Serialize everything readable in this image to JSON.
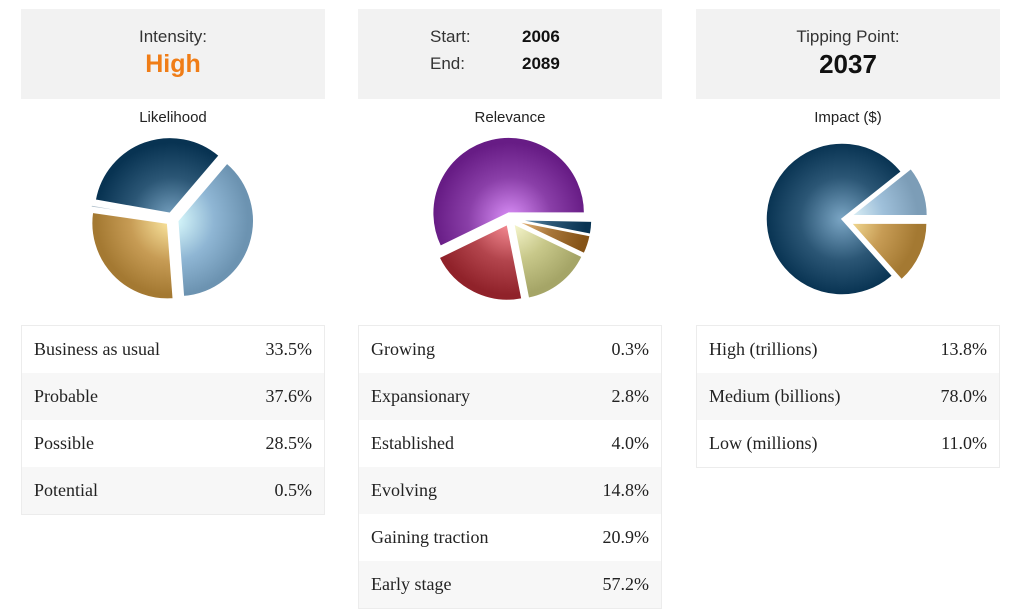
{
  "header": {
    "intensity_label": "Intensity:",
    "intensity_value": "High",
    "start_label": "Start:",
    "start_value": "2006",
    "end_label": "End:",
    "end_value": "2089",
    "tipping_label": "Tipping Point:",
    "tipping_value": "2037"
  },
  "chart_data": [
    {
      "type": "pie",
      "title": "Likelihood",
      "categories": [
        "Business as usual",
        "Probable",
        "Possible",
        "Potential"
      ],
      "values": [
        33.5,
        37.6,
        28.5,
        0.5
      ],
      "value_labels": [
        "33.5%",
        "37.6%",
        "28.5%",
        "0.5%"
      ],
      "colors": [
        "#2b5675",
        "#8fb6d4",
        "#c79c55",
        "#d0e0ec"
      ],
      "exploded": "all"
    },
    {
      "type": "pie",
      "title": "Relevance",
      "categories": [
        "Growing",
        "Expansionary",
        "Established",
        "Evolving",
        "Gaining traction",
        "Early stage"
      ],
      "values": [
        0.3,
        2.8,
        4.0,
        14.8,
        20.9,
        57.2
      ],
      "value_labels": [
        "0.3%",
        "2.8%",
        "4.0%",
        "14.8%",
        "20.9%",
        "57.2%"
      ],
      "colors": [
        "#7a8fa3",
        "#2b5675",
        "#a8763a",
        "#c8c88a",
        "#b3454d",
        "#8a3fa8"
      ],
      "exploded": "all"
    },
    {
      "type": "pie",
      "title": "Impact ($)",
      "categories": [
        "High (trillions)",
        "Medium (billions)",
        "Low (millions)"
      ],
      "values": [
        13.8,
        78.0,
        11.0
      ],
      "value_labels": [
        "13.8%",
        "78.0%",
        "11.0%"
      ],
      "colors": [
        "#c79c55",
        "#2b5675",
        "#9fc0da"
      ],
      "exploded": [
        "High (trillions)",
        "Low (millions)"
      ]
    }
  ]
}
